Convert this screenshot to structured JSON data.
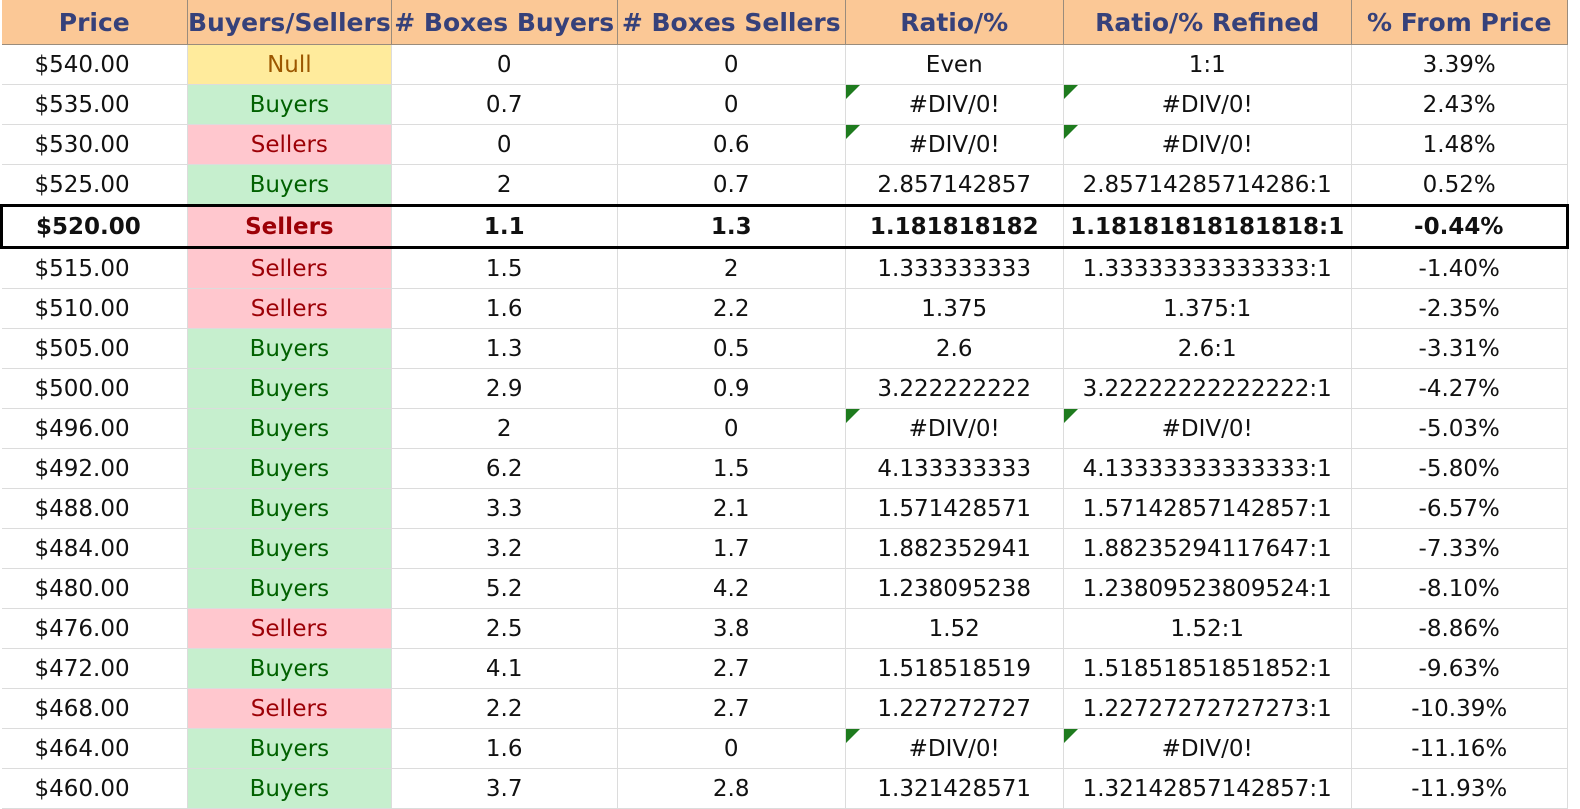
{
  "headers": [
    "Price",
    "Buyers/Sellers",
    "# Boxes Buyers",
    "# Boxes Sellers",
    "Ratio/%",
    "Ratio/% Refined",
    "% From Price"
  ],
  "colors": {
    "header_bg": "#fbc896",
    "header_text": "#36417a",
    "buyers_bg": "#c6efce",
    "buyers_text": "#006100",
    "sellers_bg": "#ffc7ce",
    "sellers_text": "#9c0006",
    "null_bg": "#ffeb9c",
    "null_text": "#9c5700",
    "error_flag": "#1e7b1e"
  },
  "current_price_row": 4,
  "rows": [
    {
      "price": "$540.00",
      "side": "Null",
      "buyers": "0",
      "sellers": "0",
      "ratio": "Even",
      "refined": "1:1",
      "from_price": "3.39%"
    },
    {
      "price": "$535.00",
      "side": "Buyers",
      "buyers": "0.7",
      "sellers": "0",
      "ratio": "#DIV/0!",
      "refined": "#DIV/0!",
      "from_price": "2.43%"
    },
    {
      "price": "$530.00",
      "side": "Sellers",
      "buyers": "0",
      "sellers": "0.6",
      "ratio": "#DIV/0!",
      "refined": "#DIV/0!",
      "from_price": "1.48%"
    },
    {
      "price": "$525.00",
      "side": "Buyers",
      "buyers": "2",
      "sellers": "0.7",
      "ratio": "2.857142857",
      "refined": "2.85714285714286:1",
      "from_price": "0.52%"
    },
    {
      "price": "$520.00",
      "side": "Sellers",
      "buyers": "1.1",
      "sellers": "1.3",
      "ratio": "1.181818182",
      "refined": "1.18181818181818:1",
      "from_price": "-0.44%"
    },
    {
      "price": "$515.00",
      "side": "Sellers",
      "buyers": "1.5",
      "sellers": "2",
      "ratio": "1.333333333",
      "refined": "1.33333333333333:1",
      "from_price": "-1.40%"
    },
    {
      "price": "$510.00",
      "side": "Sellers",
      "buyers": "1.6",
      "sellers": "2.2",
      "ratio": "1.375",
      "refined": "1.375:1",
      "from_price": "-2.35%"
    },
    {
      "price": "$505.00",
      "side": "Buyers",
      "buyers": "1.3",
      "sellers": "0.5",
      "ratio": "2.6",
      "refined": "2.6:1",
      "from_price": "-3.31%"
    },
    {
      "price": "$500.00",
      "side": "Buyers",
      "buyers": "2.9",
      "sellers": "0.9",
      "ratio": "3.222222222",
      "refined": "3.22222222222222:1",
      "from_price": "-4.27%"
    },
    {
      "price": "$496.00",
      "side": "Buyers",
      "buyers": "2",
      "sellers": "0",
      "ratio": "#DIV/0!",
      "refined": "#DIV/0!",
      "from_price": "-5.03%"
    },
    {
      "price": "$492.00",
      "side": "Buyers",
      "buyers": "6.2",
      "sellers": "1.5",
      "ratio": "4.133333333",
      "refined": "4.13333333333333:1",
      "from_price": "-5.80%"
    },
    {
      "price": "$488.00",
      "side": "Buyers",
      "buyers": "3.3",
      "sellers": "2.1",
      "ratio": "1.571428571",
      "refined": "1.57142857142857:1",
      "from_price": "-6.57%"
    },
    {
      "price": "$484.00",
      "side": "Buyers",
      "buyers": "3.2",
      "sellers": "1.7",
      "ratio": "1.882352941",
      "refined": "1.88235294117647:1",
      "from_price": "-7.33%"
    },
    {
      "price": "$480.00",
      "side": "Buyers",
      "buyers": "5.2",
      "sellers": "4.2",
      "ratio": "1.238095238",
      "refined": "1.23809523809524:1",
      "from_price": "-8.10%"
    },
    {
      "price": "$476.00",
      "side": "Sellers",
      "buyers": "2.5",
      "sellers": "3.8",
      "ratio": "1.52",
      "refined": "1.52:1",
      "from_price": "-8.86%"
    },
    {
      "price": "$472.00",
      "side": "Buyers",
      "buyers": "4.1",
      "sellers": "2.7",
      "ratio": "1.518518519",
      "refined": "1.51851851851852:1",
      "from_price": "-9.63%"
    },
    {
      "price": "$468.00",
      "side": "Sellers",
      "buyers": "2.2",
      "sellers": "2.7",
      "ratio": "1.227272727",
      "refined": "1.22727272727273:1",
      "from_price": "-10.39%"
    },
    {
      "price": "$464.00",
      "side": "Buyers",
      "buyers": "1.6",
      "sellers": "0",
      "ratio": "#DIV/0!",
      "refined": "#DIV/0!",
      "from_price": "-11.16%"
    },
    {
      "price": "$460.00",
      "side": "Buyers",
      "buyers": "3.7",
      "sellers": "2.8",
      "ratio": "1.321428571",
      "refined": "1.32142857142857:1",
      "from_price": "-11.93%"
    }
  ]
}
